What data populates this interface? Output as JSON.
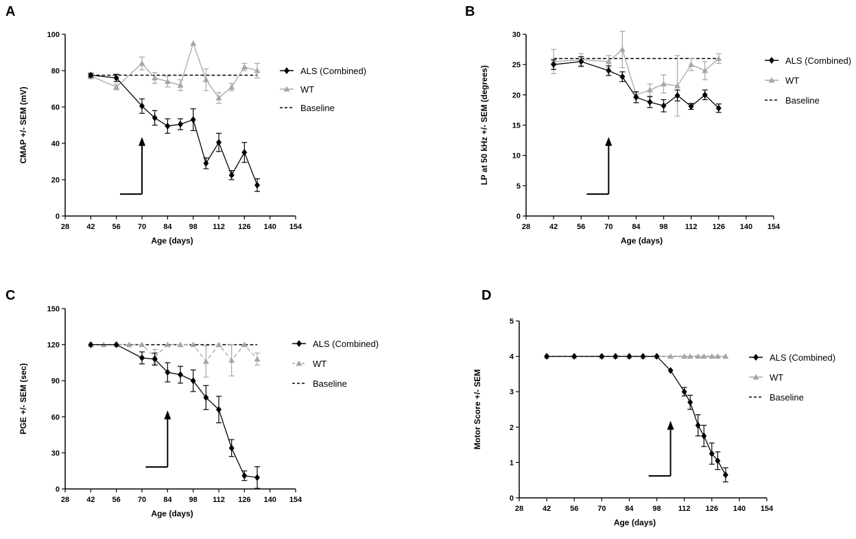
{
  "figure": {
    "panels": [
      "A",
      "B",
      "C",
      "D"
    ]
  },
  "colors": {
    "als": "#000000",
    "wt": "#a6a6a6",
    "baseline": "#000000"
  },
  "chart_data": [
    {
      "panel": "A",
      "type": "line",
      "xlabel": "Age (days)",
      "ylabel": "CMAP +/- SEM  (mV)",
      "xlim": [
        28,
        154
      ],
      "ylim": [
        0,
        100
      ],
      "xticks": [
        28,
        42,
        56,
        70,
        84,
        98,
        112,
        126,
        140,
        154
      ],
      "yticks": [
        0,
        20,
        40,
        60,
        80,
        100
      ],
      "legend": [
        "ALS (Combined)",
        "WT",
        "Baseline"
      ],
      "legend_position": "right",
      "arrow_x": 70,
      "baseline": 77.5,
      "series": [
        {
          "name": "ALS (Combined)",
          "x": [
            42,
            56,
            70,
            77,
            84,
            91,
            98,
            105,
            112,
            119,
            126,
            133
          ],
          "y": [
            77.5,
            76,
            60.5,
            54,
            49.5,
            50.5,
            53,
            29,
            40.5,
            22.5,
            35,
            17
          ],
          "err": [
            1,
            2,
            4,
            4,
            4,
            3,
            6,
            3,
            5,
            2.5,
            5.5,
            3.5
          ]
        },
        {
          "name": "WT",
          "x": [
            42,
            56,
            70,
            77,
            84,
            91,
            98,
            105,
            112,
            119,
            126,
            133
          ],
          "y": [
            77,
            71,
            84,
            76,
            74,
            72,
            95,
            75,
            65,
            71,
            82,
            80
          ],
          "err": [
            1.5,
            1.5,
            3.5,
            3,
            3,
            3,
            0,
            6,
            3,
            2,
            2,
            4
          ]
        }
      ]
    },
    {
      "panel": "B",
      "type": "line",
      "xlabel": "Age (days)",
      "ylabel": "LP at 50 kHz +/- SEM (degrees)",
      "xlim": [
        28,
        154
      ],
      "ylim": [
        0,
        30
      ],
      "xticks": [
        28,
        42,
        56,
        70,
        84,
        98,
        112,
        126,
        140,
        154
      ],
      "yticks": [
        0,
        5,
        10,
        15,
        20,
        25,
        30
      ],
      "legend": [
        "ALS (Combined)",
        "WT",
        "Baseline"
      ],
      "legend_position": "right",
      "arrow_x": 70,
      "baseline": 26,
      "series": [
        {
          "name": "ALS (Combined)",
          "x": [
            42,
            56,
            70,
            77,
            84,
            91,
            98,
            105,
            112,
            119,
            126
          ],
          "y": [
            25,
            25.5,
            24,
            23,
            19.6,
            18.8,
            18.2,
            19.9,
            18.1,
            20,
            17.8
          ],
          "err": [
            0.8,
            0.8,
            0.8,
            0.8,
            0.9,
            0.9,
            1,
            0.9,
            0.5,
            0.8,
            0.7
          ]
        },
        {
          "name": "WT",
          "x": [
            42,
            56,
            70,
            77,
            84,
            91,
            98,
            105,
            112,
            119,
            126
          ],
          "y": [
            25.5,
            25.8,
            25.5,
            27.5,
            20,
            20.8,
            21.8,
            21.5,
            25,
            24,
            26
          ],
          "err": [
            2,
            1,
            1,
            3,
            0.5,
            1,
            1.5,
            5,
            1,
            1.5,
            0.8
          ]
        }
      ]
    },
    {
      "panel": "C",
      "type": "line",
      "xlabel": "Age (days)",
      "ylabel": "PGE +/- SEM (sec)",
      "xlim": [
        28,
        154
      ],
      "ylim": [
        0,
        150
      ],
      "xticks": [
        28,
        42,
        56,
        70,
        84,
        98,
        112,
        126,
        140,
        154
      ],
      "yticks": [
        0,
        30,
        60,
        90,
        120,
        150
      ],
      "legend": [
        "ALS (Combined)",
        "WT",
        "Baseline"
      ],
      "legend_position": "right",
      "arrow_x": 84,
      "baseline": 120,
      "series": [
        {
          "name": "ALS (Combined)",
          "x": [
            42,
            56,
            70,
            77,
            84,
            91,
            98,
            105,
            112,
            119,
            126,
            133
          ],
          "y": [
            120,
            120,
            109,
            108,
            97,
            95,
            90,
            76,
            66,
            34,
            11,
            9.5
          ],
          "err": [
            0,
            0,
            5,
            5,
            8,
            7,
            9,
            10,
            11,
            7,
            4,
            9
          ]
        },
        {
          "name": "WT",
          "x": [
            42,
            49,
            56,
            63,
            70,
            77,
            84,
            91,
            98,
            105,
            112,
            119,
            126,
            133
          ],
          "y": [
            120,
            120,
            120,
            120,
            120,
            110,
            120,
            120,
            120,
            106,
            120,
            107,
            120,
            108
          ],
          "err": [
            0,
            0,
            0,
            0,
            0,
            6,
            0,
            0,
            0,
            13,
            0,
            13,
            0,
            5
          ]
        }
      ]
    },
    {
      "panel": "D",
      "type": "line",
      "xlabel": "Age (days)",
      "ylabel": "Motor Score +/- SEM",
      "xlim": [
        28,
        154
      ],
      "ylim": [
        0,
        5
      ],
      "xticks": [
        28,
        42,
        56,
        70,
        84,
        98,
        112,
        126,
        140,
        154
      ],
      "yticks": [
        0,
        1,
        2,
        3,
        4,
        5
      ],
      "legend": [
        "ALS (Combined)",
        "WT",
        "Baseline"
      ],
      "legend_position": "right",
      "arrow_x": 105,
      "baseline": 4,
      "series": [
        {
          "name": "ALS (Combined)",
          "x": [
            42,
            56,
            70,
            77,
            84,
            91,
            98,
            105,
            112,
            115,
            119,
            122,
            126,
            129,
            133
          ],
          "y": [
            4,
            4,
            4,
            4,
            4,
            4,
            4,
            3.6,
            3,
            2.7,
            2.05,
            1.75,
            1.25,
            1.05,
            0.65
          ],
          "err": [
            0,
            0,
            0,
            0,
            0,
            0,
            0,
            0,
            0.12,
            0.2,
            0.3,
            0.3,
            0.3,
            0.25,
            0.2
          ]
        },
        {
          "name": "WT",
          "x": [
            42,
            56,
            70,
            77,
            84,
            91,
            98,
            105,
            112,
            115,
            119,
            122,
            126,
            129,
            133
          ],
          "y": [
            4,
            4,
            4,
            4,
            4,
            4,
            4,
            4,
            4,
            4,
            4,
            4,
            4,
            4,
            4
          ],
          "err": [
            0,
            0,
            0,
            0,
            0,
            0,
            0,
            0,
            0,
            0,
            0,
            0,
            0,
            0,
            0
          ]
        }
      ]
    }
  ]
}
